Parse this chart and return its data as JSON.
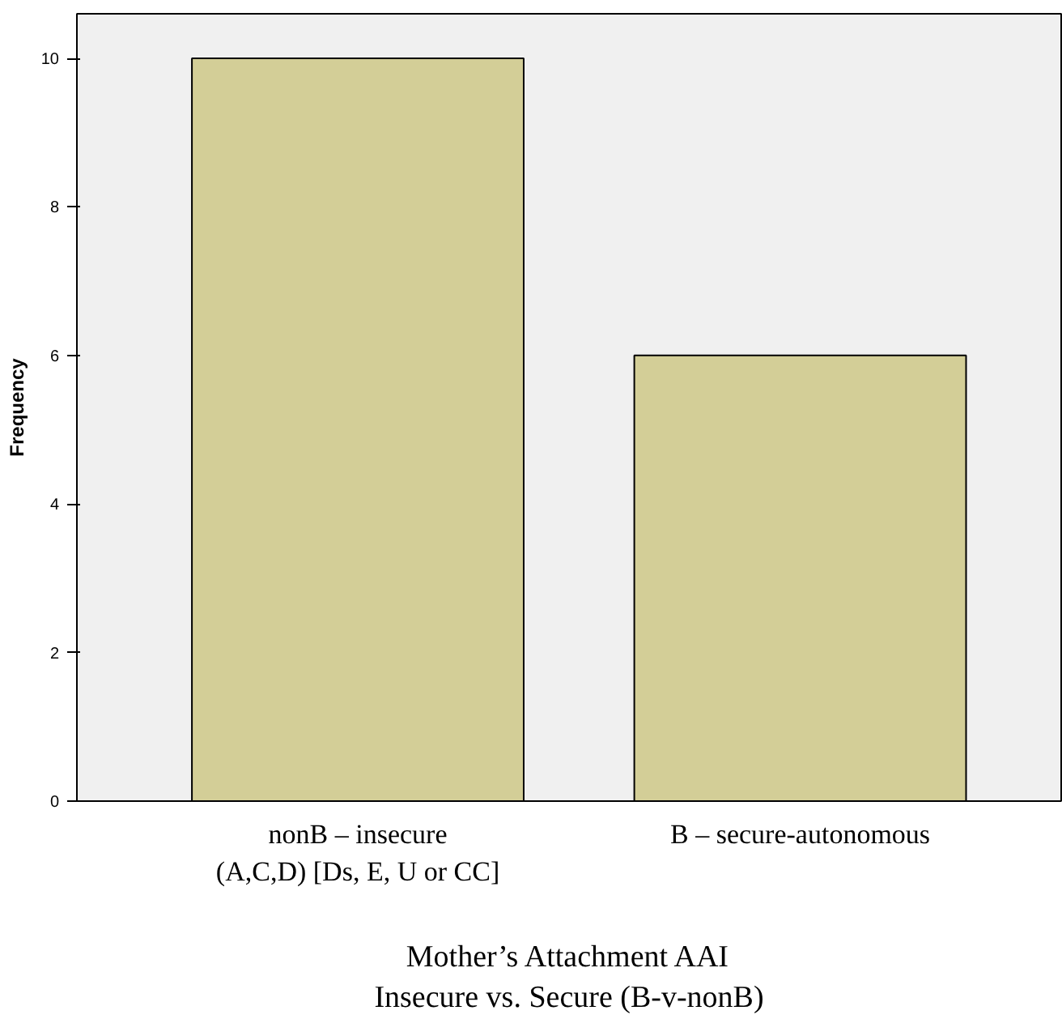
{
  "chart_data": {
    "type": "bar",
    "xlabel": "Mother’s Attachment AAI\nInsecure vs. Secure (B-v-nonB)",
    "ylabel": "Frequency",
    "categories": [
      "nonB – insecure\n(A,C,D) [Ds, E, U or CC]",
      "B – secure-autonomous"
    ],
    "values": [
      10,
      6
    ],
    "color": "#d3ce97",
    "ylim": [
      0,
      10.6
    ],
    "yticks": [
      0,
      2,
      4,
      6,
      8,
      10
    ],
    "grid": false
  }
}
